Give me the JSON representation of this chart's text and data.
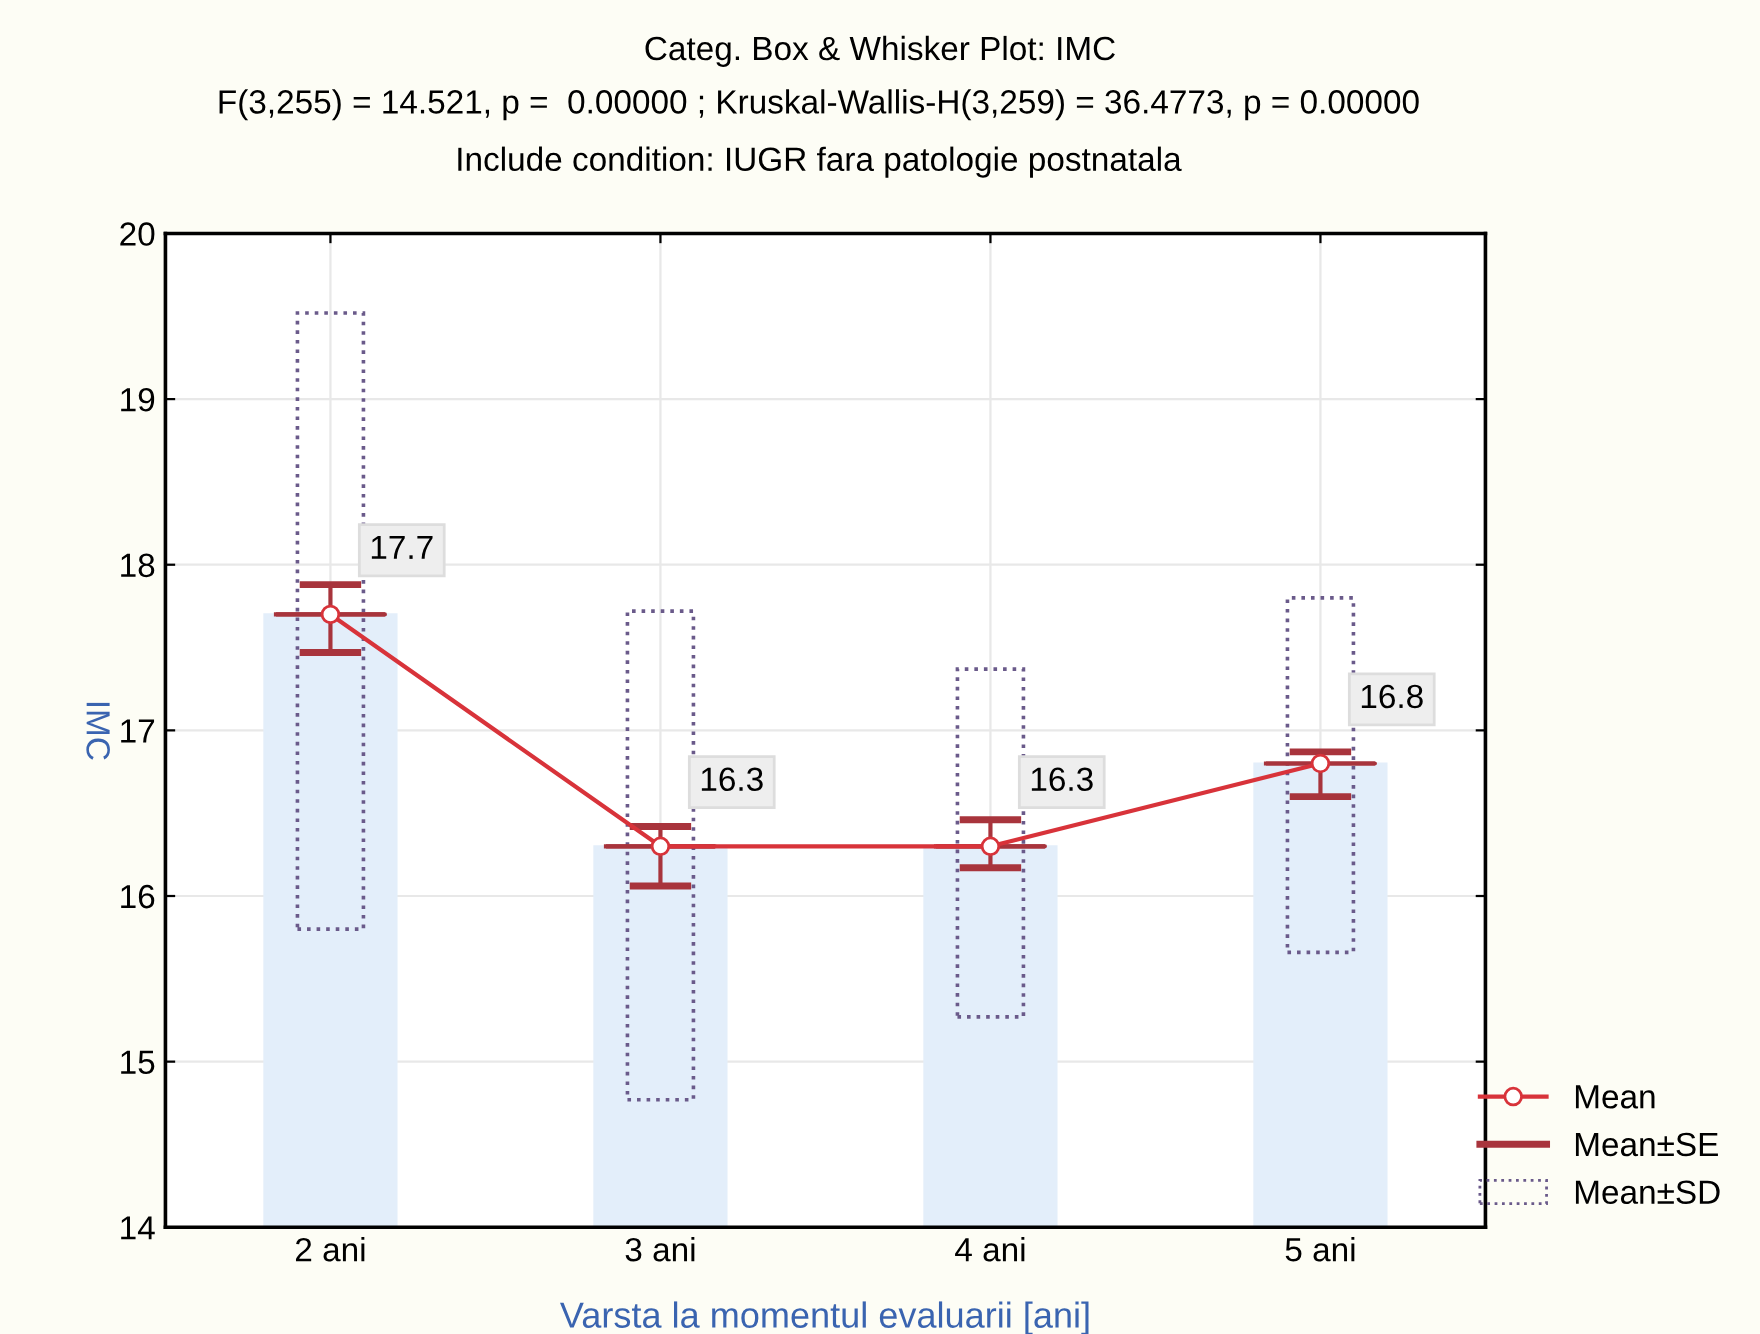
{
  "chart_data": {
    "type": "bar",
    "title": "Categ. Box & Whisker Plot: IMC",
    "subtitle": "F(3,255) = 14.521, p =  0.00000 ; Kruskal-Wallis-H(3,259) = 36.4773, p = 0.00000",
    "annotations": [
      "Include condition: IUGR fara patologie postnatala"
    ],
    "xlabel": "Varsta la momentul evaluarii [ani]",
    "ylabel": "IMC",
    "categories": [
      "2 ani",
      "3 ani",
      "4 ani",
      "5 ani"
    ],
    "series": [
      {
        "color": "#e3eefa",
        "values": [
          17.7,
          16.3,
          16.3,
          16.8
        ]
      },
      {
        "type": "line",
        "name": "Mean",
        "color": "#d8333a",
        "marker": "circle",
        "values": [
          17.7,
          16.3,
          16.3,
          16.8
        ],
        "value_labels": [
          "17.7",
          "16.3",
          "16.3",
          "16.8"
        ]
      },
      {
        "type": "box",
        "name": "Mean±SE",
        "color": "#a8343c",
        "boxes": [
          {
            "low": 17.47,
            "q1": 17.7,
            "median": 17.7,
            "q3": 17.7,
            "high": 17.88
          },
          {
            "low": 16.06,
            "q1": 16.3,
            "median": 16.3,
            "q3": 16.3,
            "high": 16.42
          },
          {
            "low": 16.17,
            "q1": 16.3,
            "median": 16.3,
            "q3": 16.3,
            "high": 16.46
          },
          {
            "low": 16.6,
            "q1": 16.8,
            "median": 16.8,
            "q3": 16.8,
            "high": 16.87
          }
        ]
      },
      {
        "type": "bar",
        "name": "Mean±SD",
        "color": "#6a5a8a",
        "line_style": "dotted",
        "base": [
          15.8,
          14.77,
          15.27,
          15.66
        ],
        "values": [
          3.72,
          2.95,
          2.1,
          2.14
        ]
      }
    ],
    "ylim": [
      14,
      20
    ],
    "yticks": [
      14,
      15,
      16,
      17,
      18,
      19,
      20
    ],
    "grid": true,
    "legend": "bottom right"
  }
}
